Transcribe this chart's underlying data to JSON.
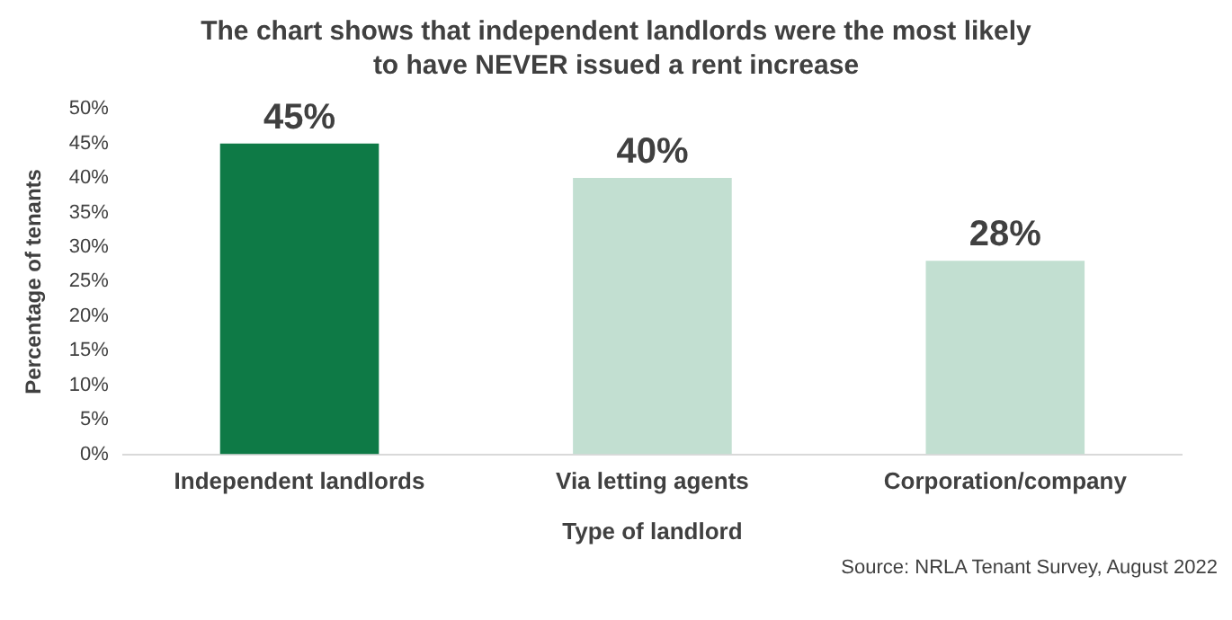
{
  "chart_data": {
    "type": "bar",
    "title": "The chart shows that independent landlords were the most likely to have NEVER issued a rent increase",
    "categories": [
      "Independent landlords",
      "Via letting agents",
      "Corporation/company"
    ],
    "values": [
      45,
      40,
      28
    ],
    "colors": [
      "#0e7a46",
      "#c2dfd1",
      "#c2dfd1"
    ],
    "value_labels": [
      "45%",
      "40%",
      "28%"
    ],
    "xlabel": "Type of landlord",
    "ylabel": "Percentage of tenants",
    "ylim": [
      0,
      50
    ],
    "yticks": [
      {
        "value": 0,
        "label": "0%"
      },
      {
        "value": 5,
        "label": "5%"
      },
      {
        "value": 10,
        "label": "10%"
      },
      {
        "value": 15,
        "label": "15%"
      },
      {
        "value": 20,
        "label": "20%"
      },
      {
        "value": 25,
        "label": "25%"
      },
      {
        "value": 30,
        "label": "30%"
      },
      {
        "value": 35,
        "label": "35%"
      },
      {
        "value": 40,
        "label": "40%"
      },
      {
        "value": 45,
        "label": "45%"
      },
      {
        "value": 50,
        "label": "50%"
      }
    ],
    "grid": false,
    "legend": false,
    "annotations": [
      "Source: NRLA Tenant Survey, August 2022"
    ]
  }
}
